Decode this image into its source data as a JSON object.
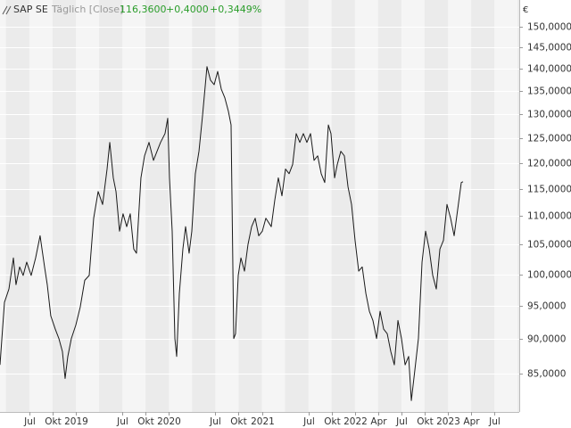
{
  "chart_data": {
    "type": "line",
    "title": "SAP SE",
    "subtitle": "Täglich [Close]",
    "last_price": "116,3600",
    "change": "+0,4000",
    "change_percent": "+0,3449%",
    "unit": "€",
    "log_scale": true,
    "grid": true,
    "color": "#1a1a1a",
    "x": [
      2018.185,
      2018.233,
      2018.281,
      2018.329,
      2018.357,
      2018.396,
      2018.434,
      2018.472,
      2018.52,
      2018.568,
      2018.616,
      2018.664,
      2018.693,
      2018.731,
      2018.779,
      2018.818,
      2018.856,
      2018.885,
      2018.914,
      2018.952,
      2019.0,
      2019.048,
      2019.096,
      2019.144,
      2019.192,
      2019.24,
      2019.288,
      2019.336,
      2019.365,
      2019.403,
      2019.432,
      2019.47,
      2019.508,
      2019.547,
      2019.585,
      2019.623,
      2019.652,
      2019.7,
      2019.739,
      2019.787,
      2019.835,
      2019.873,
      2019.911,
      2019.959,
      2019.988,
      2020.007,
      2020.036,
      2020.065,
      2020.084,
      2020.113,
      2020.151,
      2020.18,
      2020.218,
      2020.247,
      2020.285,
      2020.324,
      2020.362,
      2020.41,
      2020.448,
      2020.487,
      2020.525,
      2020.564,
      2020.602,
      2020.64,
      2020.669,
      2020.698,
      2020.717,
      2020.746,
      2020.775,
      2020.813,
      2020.851,
      2020.89,
      2020.928,
      2020.966,
      2021.005,
      2021.043,
      2021.101,
      2021.139,
      2021.177,
      2021.216,
      2021.254,
      2021.293,
      2021.331,
      2021.369,
      2021.408,
      2021.446,
      2021.484,
      2021.523,
      2021.561,
      2021.6,
      2021.638,
      2021.676,
      2021.715,
      2021.743,
      2021.782,
      2021.811,
      2021.849,
      2021.887,
      2021.926,
      2021.964,
      2022.002,
      2022.041,
      2022.079,
      2022.118,
      2022.156,
      2022.194,
      2022.233,
      2022.271,
      2022.309,
      2022.348,
      2022.386,
      2022.424,
      2022.463,
      2022.501,
      2022.54,
      2022.578,
      2022.607,
      2022.645,
      2022.683,
      2022.722,
      2022.76,
      2022.799,
      2022.837,
      2022.875,
      2022.914,
      2022.952,
      2022.99,
      2023.029,
      2023.067,
      2023.106,
      2023.144,
      2023.163
    ],
    "values": [
      86.2,
      95.5,
      97.6,
      102.7,
      98.3,
      101.2,
      99.8,
      102.0,
      99.8,
      102.7,
      106.5,
      101.2,
      98.3,
      93.4,
      91.4,
      90.0,
      88.1,
      84.3,
      87.4,
      90.0,
      92.0,
      94.8,
      99.0,
      99.8,
      109.6,
      114.5,
      112.1,
      118.8,
      124.1,
      117.1,
      114.5,
      107.3,
      110.4,
      108.1,
      110.4,
      104.2,
      103.5,
      117.1,
      121.4,
      124.1,
      120.5,
      122.3,
      124.1,
      125.9,
      129.1,
      117.1,
      107.3,
      90.0,
      87.4,
      96.9,
      104.2,
      108.1,
      103.5,
      107.3,
      117.9,
      122.3,
      129.6,
      140.5,
      137.4,
      136.4,
      139.4,
      135.4,
      133.5,
      130.6,
      127.7,
      90.0,
      90.7,
      99.8,
      102.7,
      100.5,
      105.0,
      108.1,
      109.6,
      106.5,
      107.3,
      109.6,
      108.1,
      112.9,
      117.1,
      113.7,
      118.8,
      117.9,
      119.7,
      125.9,
      124.1,
      125.9,
      124.1,
      125.9,
      120.5,
      121.4,
      117.9,
      116.2,
      127.7,
      125.9,
      117.1,
      119.7,
      122.3,
      121.4,
      115.4,
      112.1,
      105.7,
      100.5,
      101.2,
      96.9,
      94.1,
      92.7,
      90.0,
      94.1,
      91.4,
      90.7,
      88.1,
      86.2,
      92.7,
      90.0,
      86.2,
      87.4,
      81.3,
      85.5,
      90.0,
      102.0,
      107.3,
      104.2,
      99.8,
      97.6,
      104.2,
      105.7,
      112.1,
      109.6,
      106.5,
      111.3,
      116.2,
      116.36
    ],
    "xlim": [
      2018.185,
      2023.767
    ],
    "xticks": [
      {
        "value": 2018.5,
        "label": "Jul"
      },
      {
        "value": 2018.75,
        "label": "Okt"
      },
      {
        "value": 2019,
        "label": "2019"
      },
      {
        "value": 2019.5,
        "label": "Jul"
      },
      {
        "value": 2019.75,
        "label": "Okt"
      },
      {
        "value": 2020,
        "label": "2020"
      },
      {
        "value": 2020.5,
        "label": "Jul"
      },
      {
        "value": 2020.75,
        "label": "Okt"
      },
      {
        "value": 2021,
        "label": "2021"
      },
      {
        "value": 2021.5,
        "label": "Jul"
      },
      {
        "value": 2021.75,
        "label": "Okt"
      },
      {
        "value": 2022,
        "label": "2022"
      },
      {
        "value": 2022.25,
        "label": "Apr"
      },
      {
        "value": 2022.5,
        "label": "Jul"
      },
      {
        "value": 2022.75,
        "label": "Okt"
      },
      {
        "value": 2023,
        "label": "2023"
      },
      {
        "value": 2023.25,
        "label": "Apr"
      },
      {
        "value": 2023.5,
        "label": "Jul"
      }
    ],
    "ylim": [
      79.8,
      156.7
    ],
    "yticks": [
      {
        "value": 85,
        "label": "85,0000"
      },
      {
        "value": 90,
        "label": "90,0000"
      },
      {
        "value": 95,
        "label": "95,0000"
      },
      {
        "value": 100,
        "label": "100,0000"
      },
      {
        "value": 105,
        "label": "105,0000"
      },
      {
        "value": 110,
        "label": "110,0000"
      },
      {
        "value": 115,
        "label": "115,0000"
      },
      {
        "value": 120,
        "label": "120,0000"
      },
      {
        "value": 125,
        "label": "125,0000"
      },
      {
        "value": 130,
        "label": "130,0000"
      },
      {
        "value": 135,
        "label": "135,0000"
      },
      {
        "value": 140,
        "label": "140,0000"
      },
      {
        "value": 145,
        "label": "145,0000"
      },
      {
        "value": 150,
        "label": "150,0000"
      }
    ]
  }
}
